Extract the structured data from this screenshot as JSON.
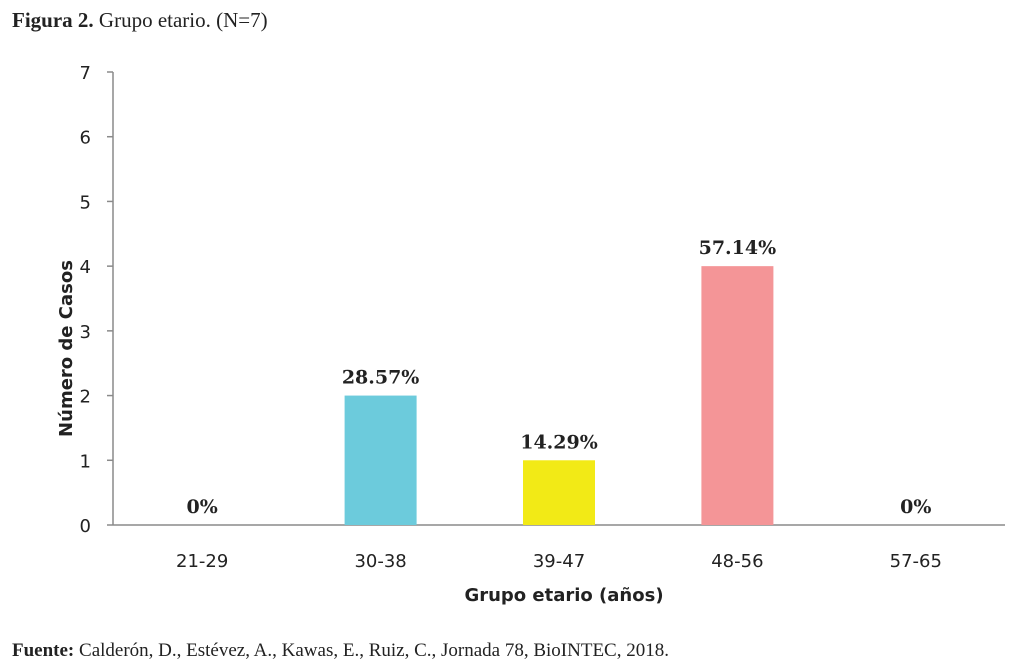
{
  "caption": {
    "label": "Figura 2.",
    "text": " Grupo etario. (N=7)"
  },
  "source": {
    "label": "Fuente:",
    "text": " Calderón, D., Estévez, A., Kawas, E., Ruiz, C., Jornada 78, BioINTEC, 2018."
  },
  "chart_data": {
    "type": "bar",
    "categories": [
      "21-29",
      "30-38",
      "39-47",
      "48-56",
      "57-65"
    ],
    "values": [
      0,
      2,
      1,
      4,
      0
    ],
    "data_labels": [
      "0%",
      "28.57%",
      "14.29%",
      "57.14%",
      "0%"
    ],
    "colors": [
      "#6ccbdc",
      "#6ccbdc",
      "#f2ea16",
      "#f49597",
      "#6ccbdc"
    ],
    "xlabel": "Grupo etario (años)",
    "ylabel": "Número de Casos",
    "ylim": [
      0,
      7
    ],
    "yticks": [
      "0",
      "1",
      "2",
      "3",
      "4",
      "5",
      "6",
      "7"
    ],
    "grid": false,
    "legend": "none"
  }
}
